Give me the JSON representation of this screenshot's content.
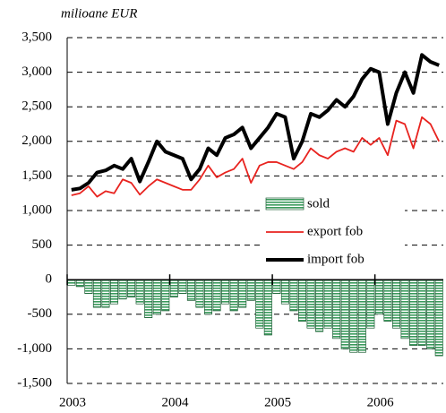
{
  "chart_data": {
    "type": "line",
    "y_axis_label": "milioane EUR",
    "categories": [
      "2003",
      null,
      null,
      null,
      null,
      null,
      null,
      null,
      null,
      null,
      null,
      null,
      "2004",
      null,
      null,
      null,
      null,
      null,
      null,
      null,
      null,
      null,
      null,
      null,
      "2005",
      null,
      null,
      null,
      null,
      null,
      null,
      null,
      null,
      null,
      null,
      null,
      "2006",
      null,
      null,
      null,
      null,
      null,
      null,
      null
    ],
    "series": [
      {
        "name": "sold",
        "kind": "bar",
        "color": "#3a9a5c",
        "values": [
          -80,
          -100,
          -200,
          -400,
          -400,
          -350,
          -280,
          -250,
          -350,
          -550,
          -500,
          -450,
          -250,
          -200,
          -300,
          -400,
          -500,
          -450,
          -350,
          -450,
          -400,
          -300,
          -700,
          -800,
          -200,
          -350,
          -450,
          -600,
          -700,
          -750,
          -700,
          -850,
          -1000,
          -1050,
          -1050,
          -700,
          -500,
          -600,
          -700,
          -850,
          -950,
          -950,
          -1000,
          -1100
        ]
      },
      {
        "name": "export fob",
        "kind": "line",
        "color": "#e8231f",
        "values": [
          1220,
          1250,
          1350,
          1200,
          1280,
          1250,
          1450,
          1400,
          1230,
          1350,
          1450,
          1400,
          1350,
          1300,
          1300,
          1450,
          1650,
          1480,
          1550,
          1600,
          1750,
          1400,
          1650,
          1700,
          1700,
          1650,
          1600,
          1700,
          1900,
          1800,
          1750,
          1850,
          1900,
          1850,
          2050,
          1950,
          2050,
          1800,
          2300,
          2250,
          1900,
          2350,
          2250,
          2000
        ]
      },
      {
        "name": "import fob",
        "kind": "line",
        "color": "#000000",
        "values": [
          1300,
          1320,
          1400,
          1550,
          1580,
          1650,
          1600,
          1750,
          1420,
          1700,
          2000,
          1850,
          1800,
          1750,
          1450,
          1600,
          1900,
          1800,
          2050,
          2100,
          2200,
          1900,
          2050,
          2200,
          2400,
          2350,
          1750,
          2000,
          2400,
          2350,
          2450,
          2600,
          2500,
          2650,
          2900,
          3050,
          3000,
          2250,
          2700,
          3000,
          2700,
          3250,
          3150,
          3100
        ]
      }
    ],
    "ylim": [
      -1500,
      3500
    ],
    "yticks": [
      {
        "value": -1500,
        "label": "-1,500"
      },
      {
        "value": -1000,
        "label": "-1,000"
      },
      -500,
      0,
      500,
      {
        "value": 1000,
        "label": "1,000"
      },
      {
        "value": 1500,
        "label": "1,500"
      },
      {
        "value": 2000,
        "label": "2,000"
      },
      {
        "value": 2500,
        "label": "2,500"
      },
      {
        "value": 3000,
        "label": "3,000"
      },
      {
        "value": 3500,
        "label": "3,500"
      }
    ],
    "grid": true
  }
}
